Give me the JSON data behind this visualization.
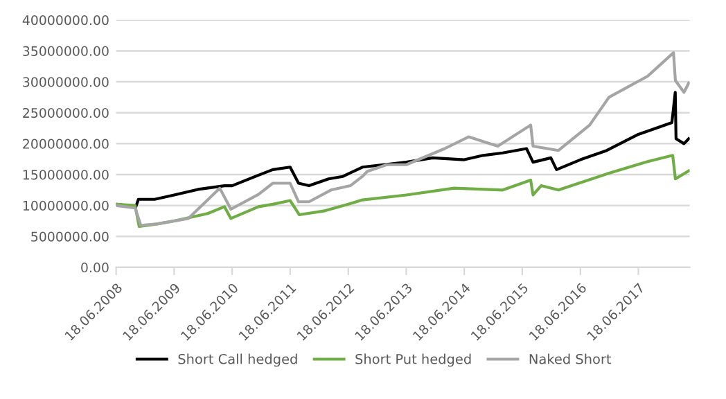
{
  "chart_data": {
    "type": "line",
    "series": [
      {
        "name": "Short Call hedged",
        "color": "#000000",
        "x": [
          "2008-06-18",
          "2008-10-20",
          "2008-11-05",
          "2009-02-15",
          "2009-06-18",
          "2009-11-15",
          "2010-05-01",
          "2010-06-18",
          "2010-12-01",
          "2011-03-01",
          "2011-06-18",
          "2011-08-10",
          "2011-10-15",
          "2012-02-15",
          "2012-05-15",
          "2012-09-15",
          "2013-06-18",
          "2013-12-01",
          "2014-06-18",
          "2014-10-15",
          "2015-02-15",
          "2015-07-15",
          "2015-08-25",
          "2015-12-15",
          "2016-01-20",
          "2016-06-18",
          "2016-12-01",
          "2017-06-18",
          "2018-01-15",
          "2018-02-05",
          "2018-02-10",
          "2018-04-01",
          "2018-05-01"
        ],
        "values": [
          10200000,
          9800000,
          11000000,
          11000000,
          11700000,
          12600000,
          13200000,
          13200000,
          14900000,
          15800000,
          16200000,
          13600000,
          13200000,
          14300000,
          14700000,
          16200000,
          17000000,
          17700000,
          17400000,
          18100000,
          18500000,
          19200000,
          17000000,
          17700000,
          15800000,
          17400000,
          18900000,
          21500000,
          23400000,
          28300000,
          20800000,
          20000000,
          20800000
        ]
      },
      {
        "name": "Short Put hedged",
        "color": "#70ad47",
        "x": [
          "2008-06-18",
          "2008-10-15",
          "2008-11-10",
          "2009-03-01",
          "2009-06-18",
          "2010-01-15",
          "2010-05-01",
          "2010-06-10",
          "2010-12-01",
          "2011-03-01",
          "2011-06-18",
          "2011-08-15",
          "2012-01-15",
          "2012-06-18",
          "2012-09-15",
          "2013-06-18",
          "2014-04-15",
          "2015-02-15",
          "2015-08-10",
          "2015-08-25",
          "2015-10-15",
          "2016-02-01",
          "2016-12-01",
          "2017-08-15",
          "2018-01-20",
          "2018-02-06",
          "2018-05-01"
        ],
        "values": [
          10200000,
          10000000,
          6600000,
          7000000,
          7500000,
          8700000,
          9800000,
          7900000,
          9800000,
          10200000,
          10800000,
          8500000,
          9100000,
          10200000,
          10900000,
          11700000,
          12800000,
          12500000,
          14100000,
          11700000,
          13200000,
          12500000,
          15100000,
          17100000,
          18100000,
          14300000,
          15600000
        ]
      },
      {
        "name": "Naked Short",
        "color": "#a5a5a5",
        "x": [
          "2008-06-18",
          "2008-10-15",
          "2008-11-20",
          "2009-03-01",
          "2009-09-15",
          "2010-04-01",
          "2010-06-10",
          "2010-12-01",
          "2011-03-01",
          "2011-06-18",
          "2011-08-10",
          "2011-10-15",
          "2012-03-01",
          "2012-07-01",
          "2012-09-15",
          "2012-10-15",
          "2013-02-15",
          "2013-06-18",
          "2014-02-15",
          "2014-07-15",
          "2015-01-15",
          "2015-08-10",
          "2015-08-25",
          "2016-02-01",
          "2016-08-15",
          "2016-12-15",
          "2017-08-15",
          "2018-01-25",
          "2018-02-06",
          "2018-04-01",
          "2018-05-01"
        ],
        "values": [
          10000000,
          9600000,
          6800000,
          7000000,
          7900000,
          12800000,
          9400000,
          11800000,
          13600000,
          13600000,
          10600000,
          10600000,
          12500000,
          13200000,
          14700000,
          15500000,
          16600000,
          16600000,
          19200000,
          21100000,
          19600000,
          23000000,
          19600000,
          18900000,
          23000000,
          27500000,
          30900000,
          34700000,
          30200000,
          28300000,
          29800000
        ]
      }
    ],
    "xlim": [
      "2008-06-18",
      "2018-05-07"
    ],
    "xticks": [
      {
        "value": "2008-06-18",
        "label": "18.06.2008"
      },
      {
        "value": "2009-06-18",
        "label": "18.06.2009"
      },
      {
        "value": "2010-06-18",
        "label": "18.06.2010"
      },
      {
        "value": "2011-06-18",
        "label": "18.06.2011"
      },
      {
        "value": "2012-06-18",
        "label": "18.06.2012"
      },
      {
        "value": "2013-06-18",
        "label": "18.06.2013"
      },
      {
        "value": "2014-06-18",
        "label": "18.06.2014"
      },
      {
        "value": "2015-06-18",
        "label": "18.06.2015"
      },
      {
        "value": "2016-06-18",
        "label": "18.06.2016"
      },
      {
        "value": "2017-06-18",
        "label": "18.06.2017"
      }
    ],
    "ylim": [
      0,
      40000000
    ],
    "yticks": [
      {
        "value": 0,
        "label": "0.00"
      },
      {
        "value": 5000000,
        "label": "5000000.00"
      },
      {
        "value": 10000000,
        "label": "10000000.00"
      },
      {
        "value": 15000000,
        "label": "15000000.00"
      },
      {
        "value": 20000000,
        "label": "20000000.00"
      },
      {
        "value": 25000000,
        "label": "25000000.00"
      },
      {
        "value": 30000000,
        "label": "30000000.00"
      },
      {
        "value": 35000000,
        "label": "35000000.00"
      },
      {
        "value": 40000000,
        "label": "40000000.00"
      }
    ],
    "grid": "y",
    "legend": "bottom",
    "marker": "none",
    "line_style": "solid"
  }
}
